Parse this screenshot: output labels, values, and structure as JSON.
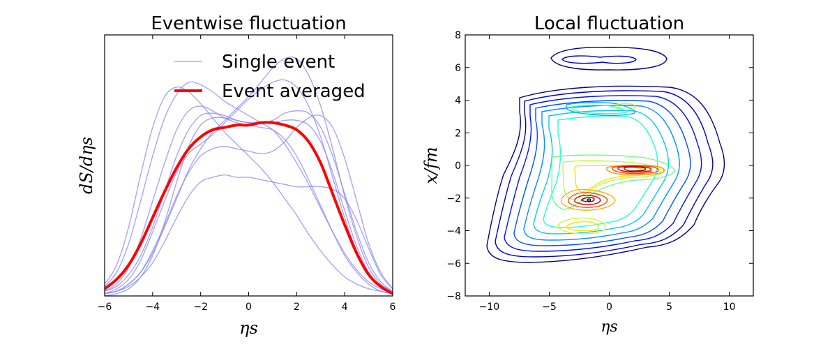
{
  "chart_data": [
    {
      "type": "line",
      "title": "Eventwise fluctuation",
      "xlabel": "ηs",
      "ylabel": "dS/dηs",
      "xlim": [
        -6,
        6
      ],
      "xticks": [
        -6,
        -4,
        -2,
        0,
        2,
        4,
        6
      ],
      "xtick_labels": [
        "−6",
        "−4",
        "−2",
        "0",
        "2",
        "4",
        "6"
      ],
      "ylim": [
        0,
        1.1
      ],
      "yticks_labeled": false,
      "legend": {
        "position": "top-right",
        "entries": [
          {
            "label": "Single event",
            "color": "#8080ff"
          },
          {
            "label": "Event averaged",
            "color": "#ff0000"
          }
        ]
      },
      "x": [
        -6,
        -5.5,
        -5,
        -4.5,
        -4,
        -3.5,
        -3,
        -2.5,
        -2,
        -1.5,
        -1,
        -0.5,
        0,
        0.5,
        1,
        1.5,
        2,
        2.5,
        3,
        3.5,
        4,
        4.5,
        5,
        5.5,
        6
      ],
      "series": [
        {
          "role": "single",
          "values": [
            0.04,
            0.1,
            0.22,
            0.4,
            0.59,
            0.75,
            0.85,
            0.9,
            0.89,
            0.86,
            0.82,
            0.79,
            0.76,
            0.73,
            0.7,
            0.64,
            0.56,
            0.47,
            0.37,
            0.27,
            0.18,
            0.11,
            0.06,
            0.03,
            0.01
          ]
        },
        {
          "role": "single",
          "values": [
            0.05,
            0.13,
            0.29,
            0.51,
            0.71,
            0.84,
            0.88,
            0.86,
            0.81,
            0.75,
            0.69,
            0.64,
            0.59,
            0.54,
            0.48,
            0.41,
            0.34,
            0.26,
            0.19,
            0.13,
            0.08,
            0.05,
            0.03,
            0.02,
            0.01
          ]
        },
        {
          "role": "single",
          "values": [
            0.02,
            0.05,
            0.12,
            0.24,
            0.4,
            0.56,
            0.7,
            0.78,
            0.8,
            0.78,
            0.75,
            0.73,
            0.72,
            0.71,
            0.7,
            0.66,
            0.59,
            0.49,
            0.38,
            0.27,
            0.17,
            0.1,
            0.05,
            0.02,
            0.01
          ]
        },
        {
          "role": "single",
          "values": [
            0.01,
            0.03,
            0.07,
            0.15,
            0.27,
            0.4,
            0.52,
            0.6,
            0.64,
            0.68,
            0.73,
            0.78,
            0.83,
            0.87,
            0.9,
            0.91,
            0.88,
            0.8,
            0.67,
            0.5,
            0.33,
            0.19,
            0.09,
            0.04,
            0.01
          ]
        },
        {
          "role": "single",
          "values": [
            0.01,
            0.02,
            0.05,
            0.1,
            0.18,
            0.29,
            0.41,
            0.53,
            0.62,
            0.69,
            0.74,
            0.79,
            0.84,
            0.9,
            0.96,
            1.0,
            1.0,
            0.93,
            0.8,
            0.62,
            0.42,
            0.25,
            0.12,
            0.05,
            0.02
          ]
        },
        {
          "role": "single",
          "values": [
            0.02,
            0.04,
            0.09,
            0.17,
            0.29,
            0.44,
            0.59,
            0.7,
            0.76,
            0.77,
            0.76,
            0.74,
            0.73,
            0.73,
            0.74,
            0.77,
            0.78,
            0.77,
            0.71,
            0.59,
            0.43,
            0.27,
            0.14,
            0.06,
            0.02
          ]
        },
        {
          "role": "single",
          "values": [
            0.0,
            0.01,
            0.03,
            0.08,
            0.17,
            0.31,
            0.48,
            0.63,
            0.72,
            0.75,
            0.75,
            0.74,
            0.73,
            0.73,
            0.73,
            0.74,
            0.74,
            0.72,
            0.65,
            0.52,
            0.36,
            0.21,
            0.1,
            0.04,
            0.01
          ]
        },
        {
          "role": "single",
          "values": [
            0.01,
            0.02,
            0.05,
            0.1,
            0.19,
            0.3,
            0.42,
            0.52,
            0.59,
            0.62,
            0.63,
            0.62,
            0.61,
            0.6,
            0.61,
            0.65,
            0.71,
            0.75,
            0.76,
            0.71,
            0.58,
            0.4,
            0.22,
            0.1,
            0.03
          ]
        },
        {
          "role": "single",
          "values": [
            0.01,
            0.02,
            0.04,
            0.08,
            0.14,
            0.23,
            0.33,
            0.42,
            0.48,
            0.5,
            0.51,
            0.5,
            0.5,
            0.49,
            0.48,
            0.47,
            0.46,
            0.46,
            0.46,
            0.45,
            0.41,
            0.32,
            0.2,
            0.09,
            0.03
          ]
        },
        {
          "role": "average",
          "values": [
            0.03,
            0.07,
            0.13,
            0.22,
            0.33,
            0.44,
            0.54,
            0.62,
            0.67,
            0.7,
            0.71,
            0.72,
            0.72,
            0.73,
            0.73,
            0.72,
            0.7,
            0.65,
            0.56,
            0.43,
            0.3,
            0.18,
            0.09,
            0.04,
            0.01
          ]
        }
      ]
    },
    {
      "type": "contour",
      "title": "Local fluctuation",
      "xlabel": "ηs",
      "ylabel": "x/fm",
      "xlim": [
        -12,
        12
      ],
      "ylim": [
        -8,
        8
      ],
      "xticks": [
        -10,
        -5,
        0,
        5,
        10
      ],
      "xtick_labels": [
        "−10",
        "−5",
        "0",
        "5",
        "10"
      ],
      "yticks": [
        -8,
        -6,
        -4,
        -2,
        0,
        2,
        4,
        6,
        8
      ],
      "ytick_labels": [
        "−8",
        "−6",
        "−4",
        "−2",
        "0",
        "2",
        "4",
        "6",
        "8"
      ],
      "colormap": "jet",
      "levels": 14
    }
  ]
}
